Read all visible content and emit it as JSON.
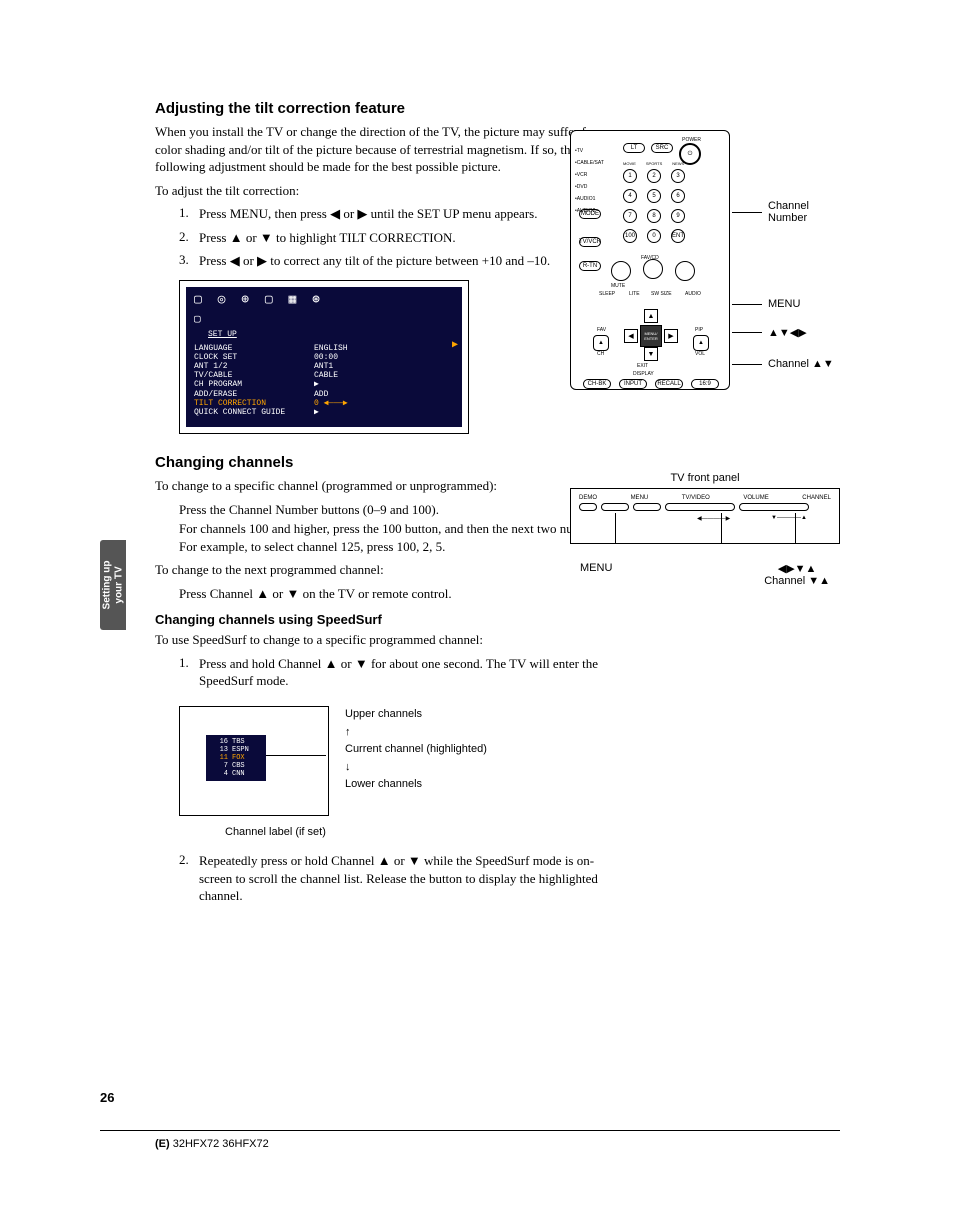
{
  "sideTab": {
    "line1": "Setting up",
    "line2": "your TV"
  },
  "sec1": {
    "title": "Adjusting the tilt correction feature",
    "p1": "When you install the TV or change the direction of the TV, the picture may suffer from color shading and/or tilt of the picture because of terrestrial magnetism. If so, the following adjustment should be made for the best possible picture.",
    "p2": "To adjust the tilt correction:",
    "s1": "Press MENU, then press ◀ or ▶ until the SET UP menu appears.",
    "s2": "Press ▲ or ▼ to highlight TILT CORRECTION.",
    "s3": "Press ◀ or ▶ to correct any tilt of the picture between +10 and –10."
  },
  "osd": {
    "iconsRow": "▢ ◎ ⊕ ▢ ▦ ⊛",
    "title": "SET UP",
    "rows": [
      {
        "k": "LANGUAGE",
        "v": "ENGLISH",
        "hl": false
      },
      {
        "k": "CLOCK SET",
        "v": "00:00",
        "hl": false
      },
      {
        "k": "ANT 1/2",
        "v": "ANT1",
        "hl": false
      },
      {
        "k": "TV/CABLE",
        "v": "CABLE",
        "hl": false
      },
      {
        "k": "CH PROGRAM",
        "v": "▶",
        "hl": false
      },
      {
        "k": "ADD/ERASE",
        "v": "ADD",
        "hl": false
      },
      {
        "k": "TILT CORRECTION",
        "v": "0 ◀———▶",
        "hl": true
      },
      {
        "k": "QUICK CONNECT GUIDE",
        "v": "▶",
        "hl": false
      }
    ]
  },
  "sec2": {
    "title": "Changing channels",
    "p1": "To change to a specific channel (programmed or unprogrammed):",
    "p2a": "Press the Channel Number buttons (0–9 and 100).",
    "p2b": "For channels 100 and higher, press the 100 button, and then the next two numbers. For example, to select channel 125, press 100, 2, 5.",
    "p3": "To change to the next programmed channel:",
    "p4": "Press Channel ▲ or ▼ on the TV or remote control.",
    "sub": "Changing channels using SpeedSurf",
    "p5": "To use SpeedSurf to change to a specific programmed channel:",
    "s1": "Press and hold Channel ▲ or ▼ for about one second. The TV will enter the SpeedSurf mode.",
    "s2": "Repeatedly press or hold Channel ▲ or ▼ while the SpeedSurf mode is on-screen to scroll the channel list. Release the button to display the highlighted channel."
  },
  "speedsurf": {
    "rows": [
      {
        "n": "16",
        "l": "TBS"
      },
      {
        "n": "13",
        "l": "ESPN"
      },
      {
        "n": "11",
        "l": "FOX"
      },
      {
        "n": "7",
        "l": "CBS"
      },
      {
        "n": "4",
        "l": "CNN"
      }
    ],
    "upper": "Upper channels",
    "upArrow": "↑",
    "current": "Current channel (highlighted)",
    "downArrow": "↓",
    "lower": "Lower channels",
    "caption": "Channel label (if set)"
  },
  "remote": {
    "sideLabels": [
      "•TV",
      "•CABLE/SAT",
      "•VCR",
      "•DVD",
      "•AUDIO1",
      "•AUDIO2"
    ],
    "topLabels": {
      "power": "POWER",
      "movie": "MOVIE",
      "sports": "SPORTS",
      "news": "NEWS",
      "services": "SERVICES",
      "list": "LIST"
    },
    "pills": {
      "mode": "MODE",
      "tvvcr": "TV/VCR",
      "rtn": "R-TN"
    },
    "nums": [
      "1",
      "2",
      "3",
      "4",
      "5",
      "6",
      "7",
      "8",
      "9",
      "100",
      "0",
      "ENT"
    ],
    "midRing": {
      "mute": "MUTE",
      "favcd": "FAV/CD",
      "sleep": "SLEEP",
      "lite": "LITE",
      "swsize": "SW SIZE",
      "audio": "AUDIO",
      "menu": "MENU/\nENTER",
      "fav": "FAV",
      "pip": "PIP",
      "exit": "EXIT",
      "display": "DISPLAY",
      "ch": "CH",
      "vol": "VOL"
    },
    "bottom": [
      "CH-BK",
      "INPUT",
      "RECALL",
      "16:9"
    ],
    "callout1": "Channel\nNumber",
    "callout2": "MENU",
    "callout3": "▲▼◀▶",
    "callout4": "Channel ▲▼"
  },
  "tvPanel": {
    "title": "TV front panel",
    "labels": [
      "DEMO",
      "MENU",
      "TV/VIDEO",
      "VOLUME",
      "CHANNEL"
    ],
    "arrows": {
      "vol": "◀————▶",
      "ch": "▼————▲"
    },
    "c1": "MENU",
    "c2": "◀▶▼▲",
    "c3": "Channel ▼▲"
  },
  "pageNum": "26",
  "footer": {
    "prefix": "(E) ",
    "models": "32HFX72  36HFX72"
  }
}
